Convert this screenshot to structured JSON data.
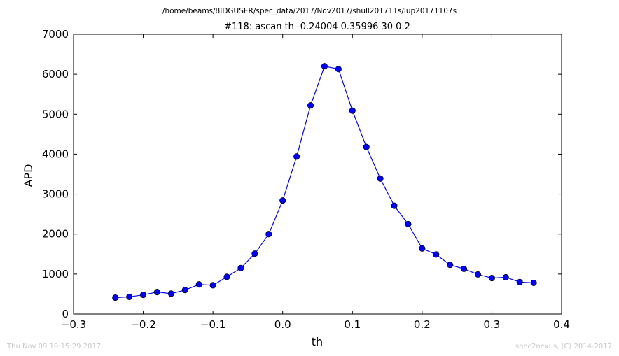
{
  "figure": {
    "suptitle": "/home/beams/8IDGUSER/spec_data/2017/Nov2017/shull201711s/lup20171107s",
    "timestamp": "Thu Nov 09 19:15:29 2017",
    "credit": "spec2nexus, (C) 2014-2017"
  },
  "chart_data": {
    "type": "line",
    "title": "#118: ascan  th -0.24004 0.35996  30 0.2",
    "xlabel": "th",
    "ylabel": "APD",
    "xlim": [
      -0.3,
      0.4
    ],
    "ylim": [
      0,
      7000
    ],
    "xticks": [
      -0.3,
      -0.2,
      -0.1,
      0.0,
      0.1,
      0.2,
      0.3,
      0.4
    ],
    "xtick_labels": [
      "−0.3",
      "−0.2",
      "−0.1",
      "0.0",
      "0.1",
      "0.2",
      "0.3",
      "0.4"
    ],
    "yticks": [
      0,
      1000,
      2000,
      3000,
      4000,
      5000,
      6000,
      7000
    ],
    "ytick_labels": [
      "0",
      "1000",
      "2000",
      "3000",
      "4000",
      "5000",
      "6000",
      "7000"
    ],
    "grid": false,
    "series": [
      {
        "color": "#0000ff",
        "marker": "circle",
        "x": [
          -0.24,
          -0.22,
          -0.2,
          -0.18,
          -0.16,
          -0.14,
          -0.12,
          -0.1,
          -0.08,
          -0.06,
          -0.04,
          -0.02,
          0.0,
          0.02,
          0.04,
          0.06,
          0.08,
          0.1,
          0.12,
          0.14,
          0.16,
          0.18,
          0.2,
          0.22,
          0.24,
          0.26,
          0.28,
          0.3,
          0.32,
          0.34,
          0.36
        ],
        "y": [
          410,
          430,
          480,
          550,
          510,
          600,
          740,
          720,
          930,
          1150,
          1510,
          2000,
          2840,
          3940,
          5220,
          6200,
          6130,
          5090,
          4180,
          3390,
          2710,
          2250,
          1640,
          1490,
          1230,
          1130,
          990,
          900,
          920,
          800,
          780
        ]
      }
    ]
  }
}
